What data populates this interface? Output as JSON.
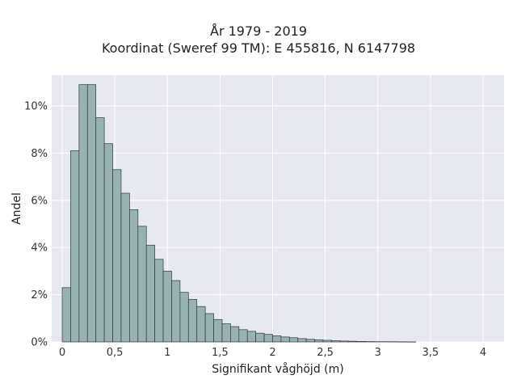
{
  "chart_data": {
    "type": "bar",
    "title": "År 1979 - 2019",
    "subtitle": "Koordinat (Sweref 99 TM): E 455816, N 6147798",
    "xlabel": "Signifikant våghöjd (m)",
    "ylabel": "Andel",
    "xlim": [
      -0.1,
      4.2
    ],
    "ylim": [
      0,
      0.113
    ],
    "x_ticks": [
      0,
      0.5,
      1,
      1.5,
      2,
      2.5,
      3,
      3.5,
      4
    ],
    "x_tick_labels": [
      "0",
      "0,5",
      "1",
      "1,5",
      "2",
      "2,5",
      "3",
      "3,5",
      "4"
    ],
    "y_ticks": [
      0,
      0.02,
      0.04,
      0.06,
      0.08,
      0.1
    ],
    "y_tick_labels": [
      "0%",
      "2%",
      "4%",
      "6%",
      "8%",
      "10%"
    ],
    "bin_width": 0.08,
    "bin_start": 0,
    "values": [
      0.023,
      0.081,
      0.109,
      0.109,
      0.095,
      0.084,
      0.073,
      0.063,
      0.056,
      0.049,
      0.041,
      0.035,
      0.03,
      0.026,
      0.021,
      0.018,
      0.015,
      0.012,
      0.0095,
      0.0077,
      0.0065,
      0.0052,
      0.0045,
      0.0037,
      0.0032,
      0.0026,
      0.0021,
      0.0018,
      0.0014,
      0.0011,
      0.0009,
      0.0007,
      0.0005,
      0.0004,
      0.0003,
      0.0002,
      0.00015,
      0.0001,
      0.0001,
      8e-05,
      5e-05,
      3e-05
    ],
    "grid": true,
    "colors": {
      "bar_fill": "#97b2b0",
      "bar_stroke": "#2f3b3a",
      "plot_bg": "#e8e8f0",
      "grid": "#ffffff"
    }
  }
}
